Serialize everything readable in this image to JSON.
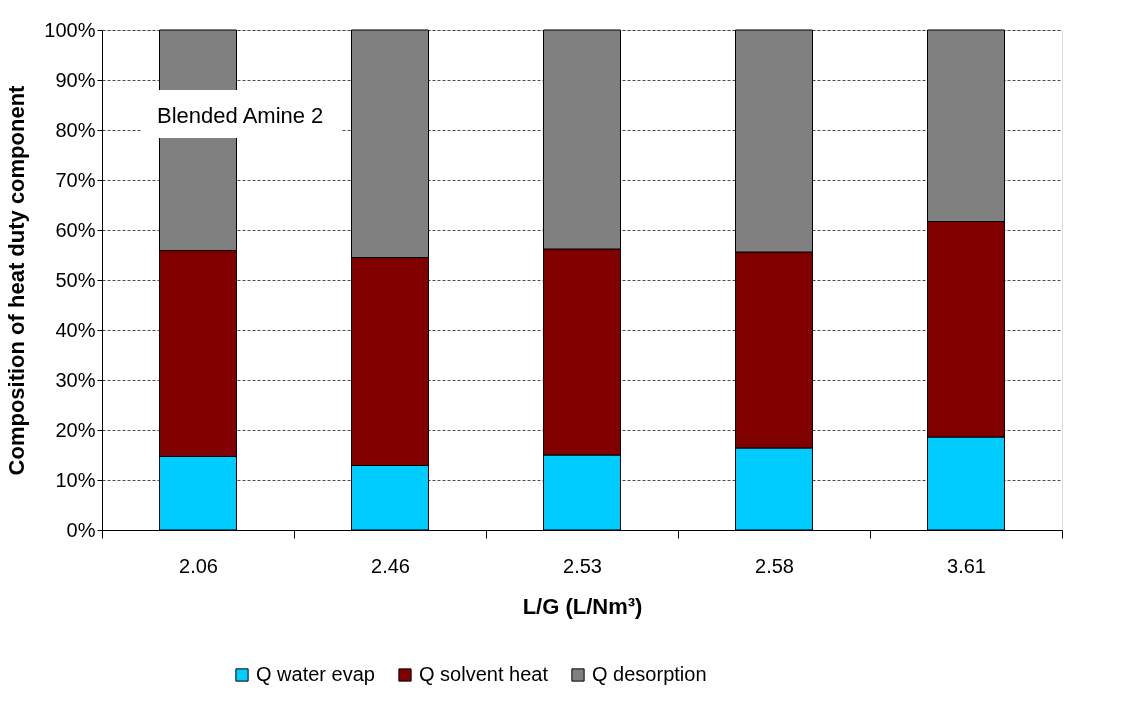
{
  "chart_data": {
    "type": "bar",
    "stacked": true,
    "ylabel": "Composition of heat duty component",
    "xlabel": "L/G (L/Nm³)",
    "categories": [
      "2.06",
      "2.46",
      "2.53",
      "2.58",
      "3.61"
    ],
    "series": [
      {
        "name": "Q water evap",
        "color": "#00ccff",
        "values": [
          14.7,
          12.9,
          15.0,
          16.4,
          18.6
        ]
      },
      {
        "name": "Q solvent heat",
        "color": "#800000",
        "values": [
          41.2,
          41.6,
          41.2,
          39.2,
          43.1
        ]
      },
      {
        "name": "Q desorption",
        "color": "#808080",
        "values": [
          44.1,
          45.5,
          43.8,
          44.4,
          38.3
        ]
      }
    ],
    "ylim": [
      0,
      100
    ],
    "yticks": [
      {
        "value": 0,
        "label": "0%"
      },
      {
        "value": 10,
        "label": "10%"
      },
      {
        "value": 20,
        "label": "20%"
      },
      {
        "value": 30,
        "label": "30%"
      },
      {
        "value": 40,
        "label": "40%"
      },
      {
        "value": 50,
        "label": "50%"
      },
      {
        "value": 60,
        "label": "60%"
      },
      {
        "value": 70,
        "label": "70%"
      },
      {
        "value": 80,
        "label": "80%"
      },
      {
        "value": 90,
        "label": "90%"
      },
      {
        "value": 100,
        "label": "100%"
      }
    ],
    "grid": "y",
    "legend": "bottom",
    "annotations": [
      "Blended Amine 2"
    ]
  }
}
